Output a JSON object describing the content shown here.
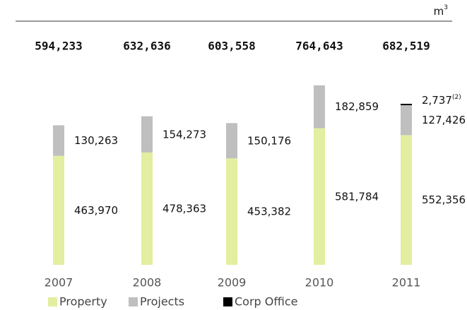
{
  "chart_data": {
    "type": "stacked_bar",
    "unit": "m",
    "unit_sup": "3",
    "categories": [
      "2007",
      "2008",
      "2009",
      "2010",
      "2011"
    ],
    "totals": {
      "values": [
        594233,
        632636,
        603558,
        764643,
        682519
      ],
      "value_labels": [
        "594,233",
        "632,636",
        "603,558",
        "764,643",
        "682,519"
      ]
    },
    "series": [
      {
        "name": "Property",
        "color": "#e3eea0",
        "values": [
          463970,
          478363,
          453382,
          581784,
          552356
        ],
        "value_labels": [
          "463,970",
          "478,363",
          "453,382",
          "581,784",
          "552,356"
        ]
      },
      {
        "name": "Projects",
        "color": "#bfbfbf",
        "values": [
          130263,
          154273,
          150176,
          182859,
          127426
        ],
        "value_labels": [
          "130,263",
          "154,273",
          "150,176",
          "182,859",
          "127,426"
        ]
      },
      {
        "name": "Corp Office",
        "color": "#000000",
        "values": [
          null,
          null,
          null,
          null,
          2737
        ],
        "value_labels": [
          null,
          null,
          null,
          null,
          "2,737"
        ],
        "annotations": [
          null,
          null,
          null,
          null,
          "(2)"
        ]
      }
    ],
    "ylim": [
      0,
      800000
    ]
  }
}
